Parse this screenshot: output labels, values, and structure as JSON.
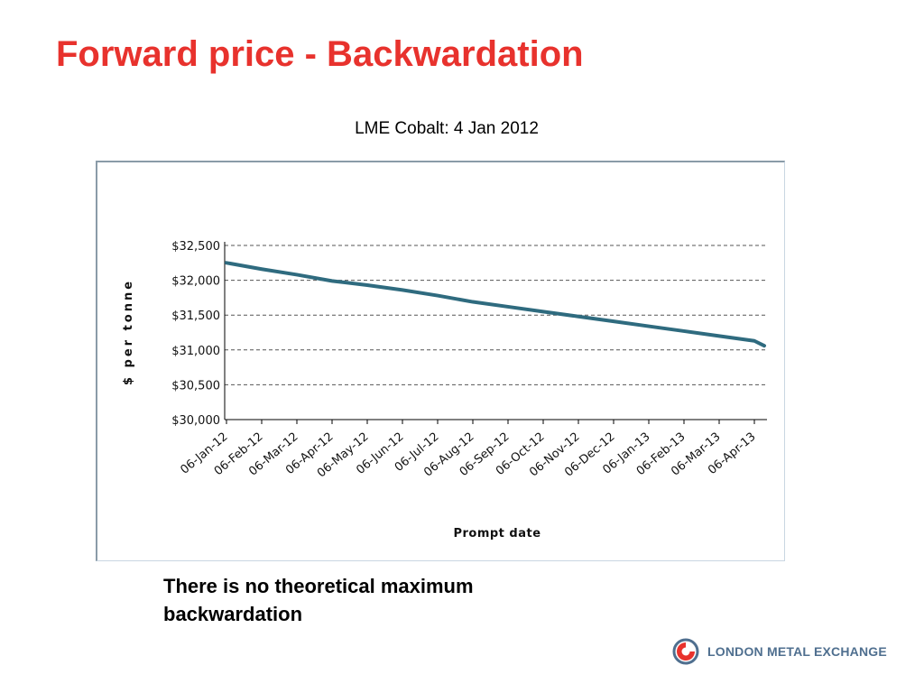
{
  "slide": {
    "title": "Forward price - Backwardation",
    "note_line1": "There is no theoretical maximum",
    "note_line2": "backwardation",
    "logo_text": "LONDON METAL EXCHANGE"
  },
  "colors": {
    "title": "#e8322d",
    "series_line": "#2f6b7f",
    "logo_text": "#4f6f8f",
    "logo_mark": "#e8322d"
  },
  "chart_data": {
    "type": "line",
    "title": "LME Cobalt: 4 Jan 2012",
    "xlabel": "Prompt date",
    "ylabel": "$ per tonne",
    "ylim": [
      30000,
      32500
    ],
    "yticks": [
      30000,
      30500,
      31000,
      31500,
      32000,
      32500
    ],
    "ytick_labels": [
      "$30,000",
      "$30,500",
      "$31,000",
      "$31,500",
      "$32,000",
      "$32,500"
    ],
    "categories": [
      "06-Jan-12",
      "06-Feb-12",
      "06-Mar-12",
      "06-Apr-12",
      "06-May-12",
      "06-Jun-12",
      "06-Jul-12",
      "06-Aug-12",
      "06-Sep-12",
      "06-Oct-12",
      "06-Nov-12",
      "06-Dec-12",
      "06-Jan-13",
      "06-Feb-13",
      "06-Mar-13",
      "06-Apr-13"
    ],
    "series": [
      {
        "values": [
          32250,
          32160,
          32080,
          31990,
          31930,
          31860,
          31780,
          31690,
          31620,
          31550,
          31480,
          31410,
          31340,
          31270,
          31200,
          31130
        ],
        "end_value": 31060
      }
    ],
    "grid": "horizontal dashed",
    "legend": "none"
  }
}
